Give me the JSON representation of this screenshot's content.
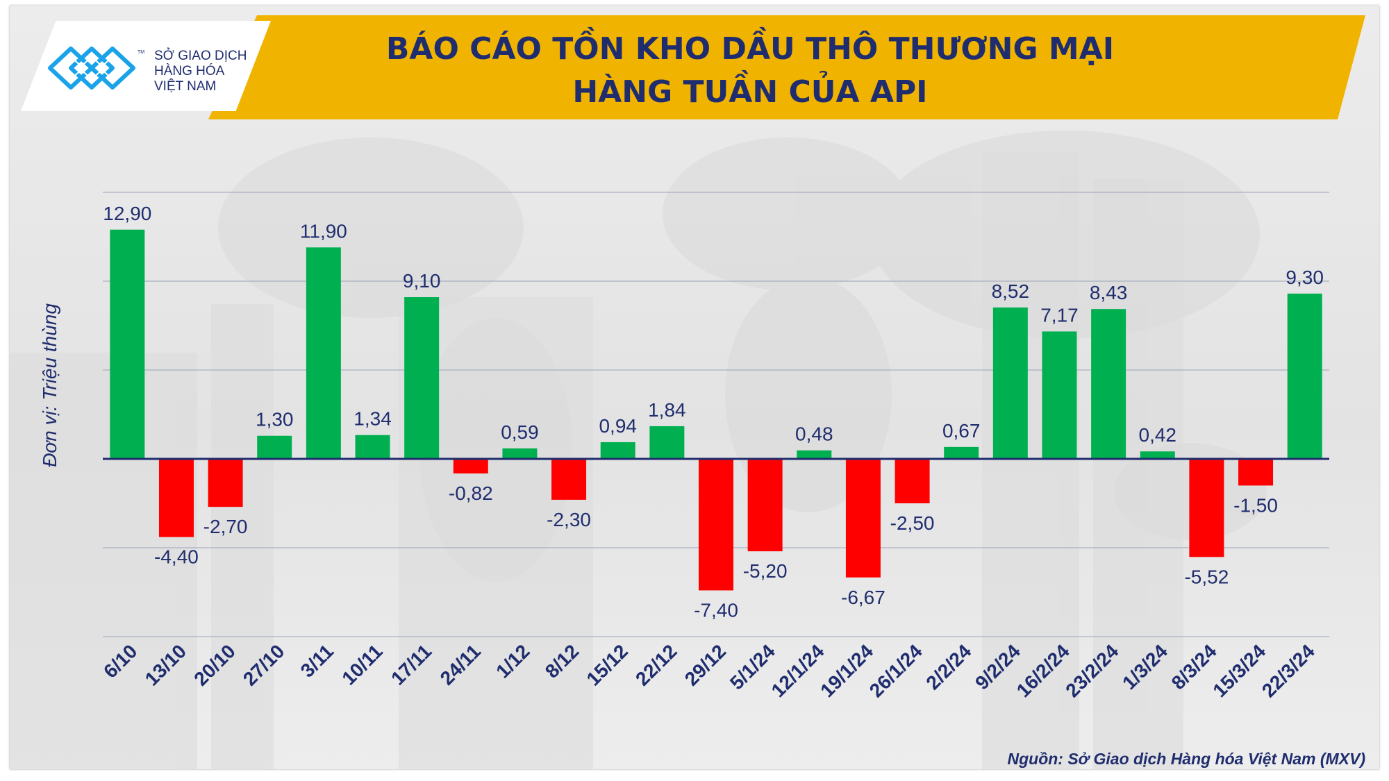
{
  "title": {
    "line1": "BÁO CÁO TỒN KHO DẦU THÔ THƯƠNG MẠI",
    "line2": "HÀNG TUẦN CỦA API"
  },
  "logo": {
    "line1": "SỞ GIAO DỊCH",
    "line2": "HÀNG HÓA",
    "line3": "VIỆT NAM",
    "tm": "TM"
  },
  "ylabel": "Đơn vị: Triệu thùng",
  "source": "Nguồn: Sở Giao dịch Hàng hóa Việt Nam (MXV)",
  "colors": {
    "positive": "#00b050",
    "negative": "#ff0000",
    "banner": "#f0b400",
    "text": "#1f2d6e",
    "zero_line": "#1f2d6e",
    "grid": "#9aa3b8"
  },
  "chart_data": {
    "type": "bar",
    "categories": [
      "6/10",
      "13/10",
      "20/10",
      "27/10",
      "3/11",
      "10/11",
      "17/11",
      "24/11",
      "1/12",
      "8/12",
      "15/12",
      "22/12",
      "29/12",
      "5/1/24",
      "12/1/24",
      "19/1/24",
      "26/1/24",
      "2/2/24",
      "9/2/24",
      "16/2/24",
      "23/2/24",
      "1/3/24",
      "8/3/24",
      "15/3/24",
      "22/3/24"
    ],
    "values": [
      12.9,
      -4.4,
      -2.7,
      1.3,
      11.9,
      1.34,
      9.1,
      -0.82,
      0.59,
      -2.3,
      0.94,
      1.84,
      -7.4,
      -5.2,
      0.48,
      -6.67,
      -2.5,
      0.67,
      8.52,
      7.17,
      8.43,
      0.42,
      -5.52,
      -1.5,
      9.3
    ],
    "labels": [
      "12,90",
      "-4,40",
      "-2,70",
      "1,30",
      "11,90",
      "1,34",
      "9,10",
      "-0,82",
      "0,59",
      "-2,30",
      "0,94",
      "1,84",
      "-7,40",
      "-5,20",
      "0,48",
      "-6,67",
      "-2,50",
      "0,67",
      "8,52",
      "7,17",
      "8,43",
      "0,42",
      "-5,52",
      "-1,50",
      "9,30"
    ],
    "ylim": [
      -10,
      15
    ],
    "grid": true,
    "ylabel": "Đơn vị: Triệu thùng"
  }
}
